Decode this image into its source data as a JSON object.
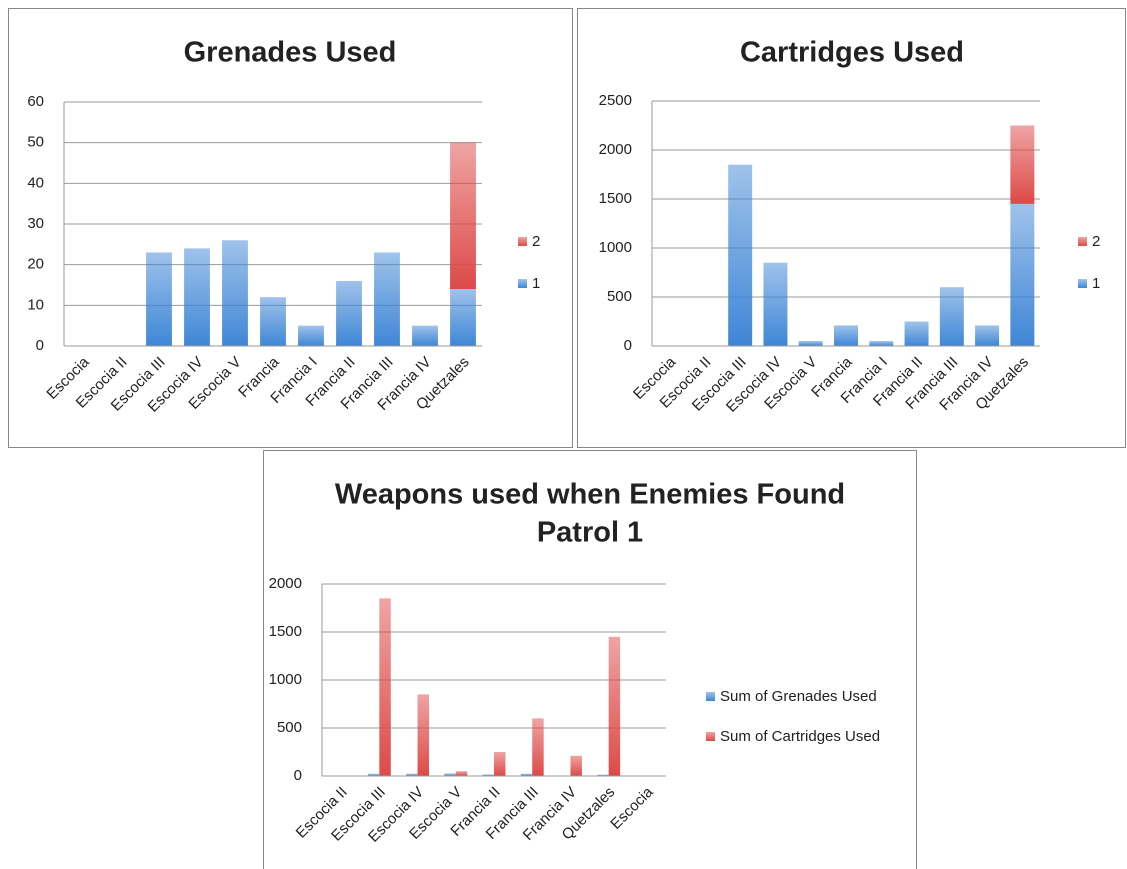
{
  "chart_data": [
    {
      "type": "bar",
      "stacked": true,
      "title": "Grenades Used",
      "categories": [
        "Escocia",
        "Escocia II",
        "Escocia III",
        "Escocia IV",
        "Escocia V",
        "Francia",
        "Francia I",
        "Francia II",
        "Francia III",
        "Francia IV",
        "Quetzales"
      ],
      "series": [
        {
          "name": "1",
          "color": "#3f86d6",
          "values": [
            0,
            0,
            23,
            24,
            26,
            12,
            5,
            16,
            23,
            5,
            14
          ]
        },
        {
          "name": "2",
          "color": "#dd4a48",
          "values": [
            0,
            0,
            0,
            0,
            0,
            0,
            0,
            0,
            0,
            0,
            36
          ]
        }
      ],
      "ylim": [
        0,
        60
      ],
      "yticks": [
        0,
        10,
        20,
        30,
        40,
        50,
        60
      ],
      "grid": true,
      "legend": "right"
    },
    {
      "type": "bar",
      "stacked": true,
      "title": "Cartridges Used",
      "categories": [
        "Escocia",
        "Escocia II",
        "Escocia III",
        "Escocia IV",
        "Escocia V",
        "Francia",
        "Francia I",
        "Francia II",
        "Francia III",
        "Francia IV",
        "Quetzales"
      ],
      "series": [
        {
          "name": "1",
          "color": "#3f86d6",
          "values": [
            0,
            0,
            1850,
            850,
            50,
            210,
            50,
            250,
            600,
            210,
            1450
          ]
        },
        {
          "name": "2",
          "color": "#dd4a48",
          "values": [
            0,
            0,
            0,
            0,
            0,
            0,
            0,
            0,
            0,
            0,
            800
          ]
        }
      ],
      "ylim": [
        0,
        2500
      ],
      "yticks": [
        0,
        500,
        1000,
        1500,
        2000,
        2500
      ],
      "grid": true,
      "legend": "right"
    },
    {
      "type": "bar",
      "stacked": false,
      "title": "Weapons used when Enemies Found",
      "subtitle": "Patrol 1",
      "categories": [
        "Escocia II",
        "Escocia III",
        "Escocia IV",
        "Escocia V",
        "Francia II",
        "Francia III",
        "Francia IV",
        "Quetzales",
        "Escocia"
      ],
      "series": [
        {
          "name": "Sum of Grenades Used",
          "color": "#3f86d6",
          "values": [
            0,
            23,
            24,
            26,
            16,
            23,
            5,
            14,
            0
          ]
        },
        {
          "name": "Sum of Cartridges Used",
          "color": "#dd4a48",
          "values": [
            0,
            1850,
            850,
            50,
            250,
            600,
            210,
            1450,
            0
          ]
        }
      ],
      "ylim": [
        0,
        2000
      ],
      "yticks": [
        0,
        500,
        1000,
        1500,
        2000
      ],
      "grid": true,
      "legend": "right"
    }
  ]
}
